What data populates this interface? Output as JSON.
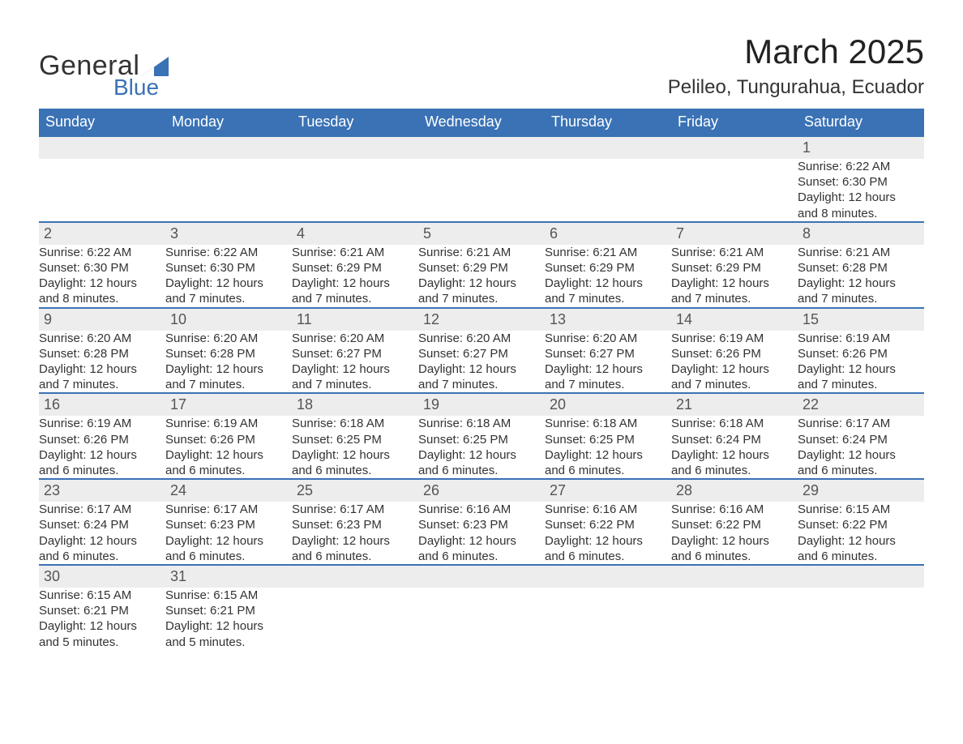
{
  "logo": {
    "word1": "General",
    "word2": "Blue",
    "triangle_color": "#3a72b5"
  },
  "title": "March 2025",
  "location": "Pelileo, Tungurahua, Ecuador",
  "colors": {
    "header_bg": "#3a72b5",
    "header_text": "#ffffff",
    "daynum_bg": "#ededed",
    "row_divider": "#3a72b5",
    "text": "#333333"
  },
  "weekdays": [
    "Sunday",
    "Monday",
    "Tuesday",
    "Wednesday",
    "Thursday",
    "Friday",
    "Saturday"
  ],
  "weeks": [
    [
      null,
      null,
      null,
      null,
      null,
      null,
      {
        "n": "1",
        "sr": "Sunrise: 6:22 AM",
        "ss": "Sunset: 6:30 PM",
        "d1": "Daylight: 12 hours",
        "d2": "and 8 minutes."
      }
    ],
    [
      {
        "n": "2",
        "sr": "Sunrise: 6:22 AM",
        "ss": "Sunset: 6:30 PM",
        "d1": "Daylight: 12 hours",
        "d2": "and 8 minutes."
      },
      {
        "n": "3",
        "sr": "Sunrise: 6:22 AM",
        "ss": "Sunset: 6:30 PM",
        "d1": "Daylight: 12 hours",
        "d2": "and 7 minutes."
      },
      {
        "n": "4",
        "sr": "Sunrise: 6:21 AM",
        "ss": "Sunset: 6:29 PM",
        "d1": "Daylight: 12 hours",
        "d2": "and 7 minutes."
      },
      {
        "n": "5",
        "sr": "Sunrise: 6:21 AM",
        "ss": "Sunset: 6:29 PM",
        "d1": "Daylight: 12 hours",
        "d2": "and 7 minutes."
      },
      {
        "n": "6",
        "sr": "Sunrise: 6:21 AM",
        "ss": "Sunset: 6:29 PM",
        "d1": "Daylight: 12 hours",
        "d2": "and 7 minutes."
      },
      {
        "n": "7",
        "sr": "Sunrise: 6:21 AM",
        "ss": "Sunset: 6:29 PM",
        "d1": "Daylight: 12 hours",
        "d2": "and 7 minutes."
      },
      {
        "n": "8",
        "sr": "Sunrise: 6:21 AM",
        "ss": "Sunset: 6:28 PM",
        "d1": "Daylight: 12 hours",
        "d2": "and 7 minutes."
      }
    ],
    [
      {
        "n": "9",
        "sr": "Sunrise: 6:20 AM",
        "ss": "Sunset: 6:28 PM",
        "d1": "Daylight: 12 hours",
        "d2": "and 7 minutes."
      },
      {
        "n": "10",
        "sr": "Sunrise: 6:20 AM",
        "ss": "Sunset: 6:28 PM",
        "d1": "Daylight: 12 hours",
        "d2": "and 7 minutes."
      },
      {
        "n": "11",
        "sr": "Sunrise: 6:20 AM",
        "ss": "Sunset: 6:27 PM",
        "d1": "Daylight: 12 hours",
        "d2": "and 7 minutes."
      },
      {
        "n": "12",
        "sr": "Sunrise: 6:20 AM",
        "ss": "Sunset: 6:27 PM",
        "d1": "Daylight: 12 hours",
        "d2": "and 7 minutes."
      },
      {
        "n": "13",
        "sr": "Sunrise: 6:20 AM",
        "ss": "Sunset: 6:27 PM",
        "d1": "Daylight: 12 hours",
        "d2": "and 7 minutes."
      },
      {
        "n": "14",
        "sr": "Sunrise: 6:19 AM",
        "ss": "Sunset: 6:26 PM",
        "d1": "Daylight: 12 hours",
        "d2": "and 7 minutes."
      },
      {
        "n": "15",
        "sr": "Sunrise: 6:19 AM",
        "ss": "Sunset: 6:26 PM",
        "d1": "Daylight: 12 hours",
        "d2": "and 7 minutes."
      }
    ],
    [
      {
        "n": "16",
        "sr": "Sunrise: 6:19 AM",
        "ss": "Sunset: 6:26 PM",
        "d1": "Daylight: 12 hours",
        "d2": "and 6 minutes."
      },
      {
        "n": "17",
        "sr": "Sunrise: 6:19 AM",
        "ss": "Sunset: 6:26 PM",
        "d1": "Daylight: 12 hours",
        "d2": "and 6 minutes."
      },
      {
        "n": "18",
        "sr": "Sunrise: 6:18 AM",
        "ss": "Sunset: 6:25 PM",
        "d1": "Daylight: 12 hours",
        "d2": "and 6 minutes."
      },
      {
        "n": "19",
        "sr": "Sunrise: 6:18 AM",
        "ss": "Sunset: 6:25 PM",
        "d1": "Daylight: 12 hours",
        "d2": "and 6 minutes."
      },
      {
        "n": "20",
        "sr": "Sunrise: 6:18 AM",
        "ss": "Sunset: 6:25 PM",
        "d1": "Daylight: 12 hours",
        "d2": "and 6 minutes."
      },
      {
        "n": "21",
        "sr": "Sunrise: 6:18 AM",
        "ss": "Sunset: 6:24 PM",
        "d1": "Daylight: 12 hours",
        "d2": "and 6 minutes."
      },
      {
        "n": "22",
        "sr": "Sunrise: 6:17 AM",
        "ss": "Sunset: 6:24 PM",
        "d1": "Daylight: 12 hours",
        "d2": "and 6 minutes."
      }
    ],
    [
      {
        "n": "23",
        "sr": "Sunrise: 6:17 AM",
        "ss": "Sunset: 6:24 PM",
        "d1": "Daylight: 12 hours",
        "d2": "and 6 minutes."
      },
      {
        "n": "24",
        "sr": "Sunrise: 6:17 AM",
        "ss": "Sunset: 6:23 PM",
        "d1": "Daylight: 12 hours",
        "d2": "and 6 minutes."
      },
      {
        "n": "25",
        "sr": "Sunrise: 6:17 AM",
        "ss": "Sunset: 6:23 PM",
        "d1": "Daylight: 12 hours",
        "d2": "and 6 minutes."
      },
      {
        "n": "26",
        "sr": "Sunrise: 6:16 AM",
        "ss": "Sunset: 6:23 PM",
        "d1": "Daylight: 12 hours",
        "d2": "and 6 minutes."
      },
      {
        "n": "27",
        "sr": "Sunrise: 6:16 AM",
        "ss": "Sunset: 6:22 PM",
        "d1": "Daylight: 12 hours",
        "d2": "and 6 minutes."
      },
      {
        "n": "28",
        "sr": "Sunrise: 6:16 AM",
        "ss": "Sunset: 6:22 PM",
        "d1": "Daylight: 12 hours",
        "d2": "and 6 minutes."
      },
      {
        "n": "29",
        "sr": "Sunrise: 6:15 AM",
        "ss": "Sunset: 6:22 PM",
        "d1": "Daylight: 12 hours",
        "d2": "and 6 minutes."
      }
    ],
    [
      {
        "n": "30",
        "sr": "Sunrise: 6:15 AM",
        "ss": "Sunset: 6:21 PM",
        "d1": "Daylight: 12 hours",
        "d2": "and 5 minutes."
      },
      {
        "n": "31",
        "sr": "Sunrise: 6:15 AM",
        "ss": "Sunset: 6:21 PM",
        "d1": "Daylight: 12 hours",
        "d2": "and 5 minutes."
      },
      null,
      null,
      null,
      null,
      null
    ]
  ]
}
